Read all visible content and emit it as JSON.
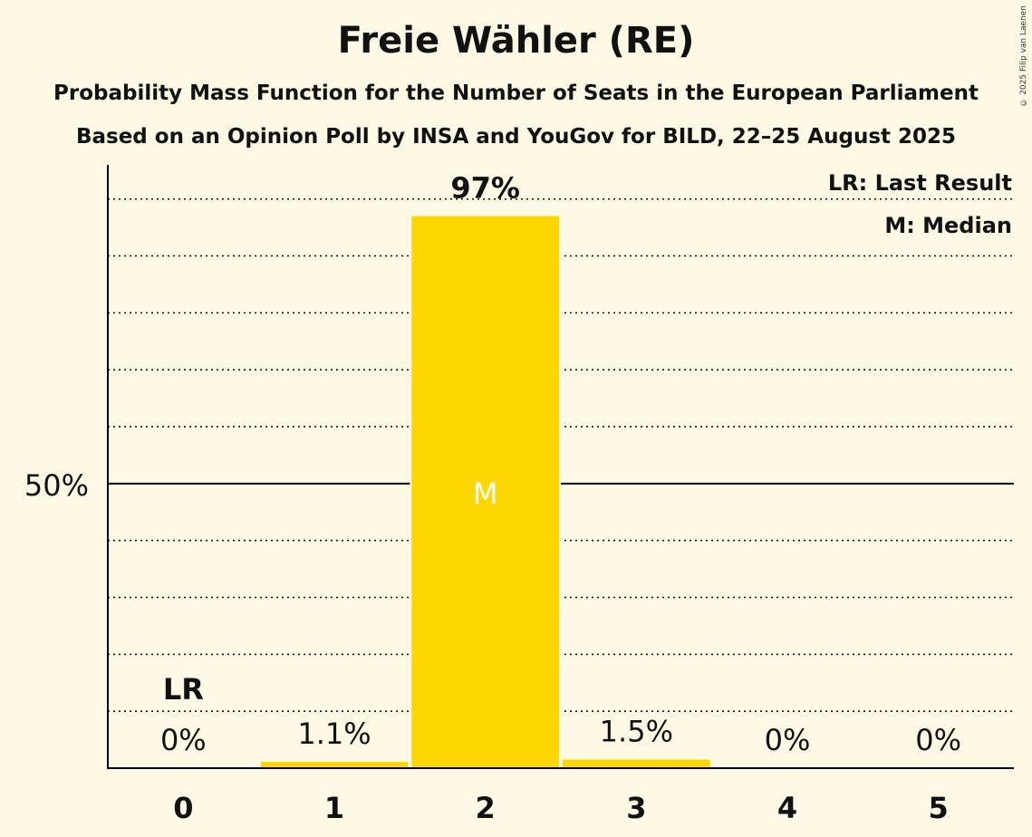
{
  "chart_data": {
    "type": "bar",
    "title": "Freie Wähler (RE)",
    "subtitle": "Probability Mass Function for the Number of Seats in the European Parliament",
    "subtitle2": "Based on an Opinion Poll by INSA and YouGov for BILD, 22–25 August 2025",
    "copyright": "© 2025 Filip van Laenen",
    "categories": [
      "0",
      "1",
      "2",
      "3",
      "4",
      "5"
    ],
    "values": [
      0,
      1.1,
      97,
      1.5,
      0,
      0
    ],
    "value_labels": [
      "0%",
      "1.1%",
      "97%",
      "1.5%",
      "0%",
      "0%"
    ],
    "ylim": [
      0,
      106
    ],
    "ytick_label": "50%",
    "ytick_value": 50,
    "grid_step": 10,
    "median_index": 2,
    "median_label": "M",
    "last_result_index": 0,
    "last_result_label": "LR",
    "legend": [
      "LR: Last Result",
      "M: Median"
    ],
    "bar_color": "#FFD700"
  }
}
